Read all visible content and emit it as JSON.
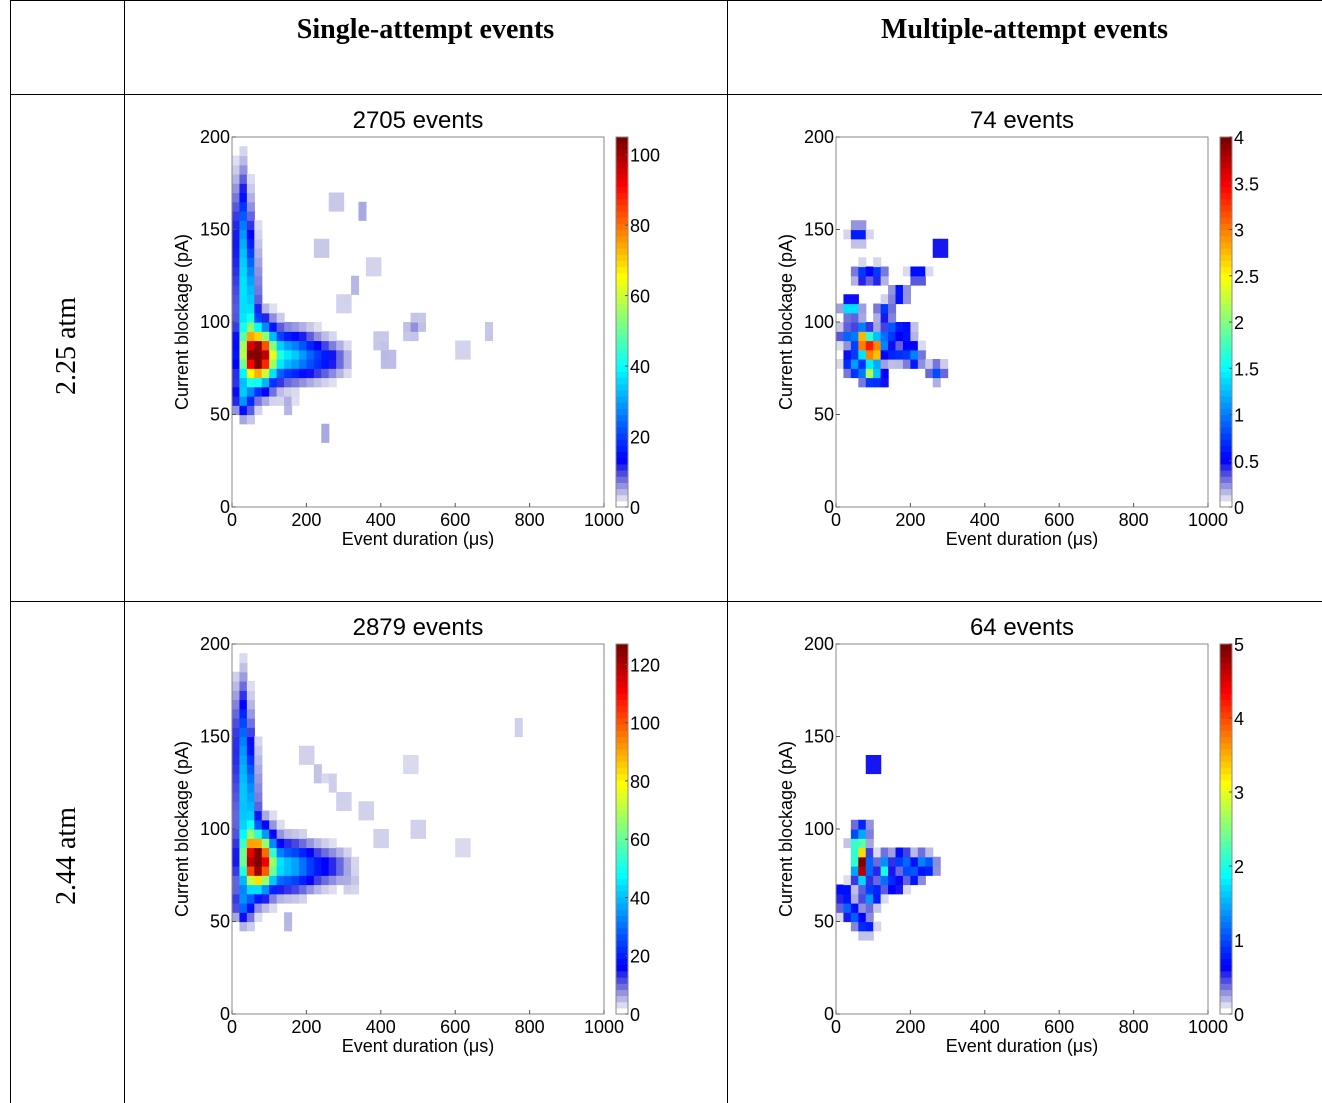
{
  "table": {
    "col_headers": [
      "Single-attempt events",
      "Multiple-attempt events"
    ],
    "row_headers": [
      "2.25 atm",
      "2.44 atm"
    ]
  },
  "chart_data": [
    {
      "type": "heatmap",
      "title": "2705 events",
      "xlabel": "Event duration (μs)",
      "ylabel": "Current blockage (pA)",
      "xlim": [
        0,
        1000
      ],
      "ylim": [
        0,
        200
      ],
      "xticks": [
        0,
        200,
        400,
        600,
        800,
        1000
      ],
      "yticks": [
        0,
        50,
        100,
        150,
        200
      ],
      "colorbar": {
        "min": 0,
        "max": 105,
        "ticks": [
          0,
          20,
          40,
          60,
          80,
          100
        ]
      },
      "colormap": "jet-white",
      "hotspots": [
        {
          "x": 70,
          "y": 82,
          "value": 105,
          "sx": 28,
          "sy": 10
        },
        {
          "x": 40,
          "y": 110,
          "value": 40,
          "sx": 16,
          "sy": 25
        },
        {
          "x": 25,
          "y": 150,
          "value": 20,
          "sx": 12,
          "sy": 20
        },
        {
          "x": 150,
          "y": 82,
          "value": 35,
          "sx": 50,
          "sy": 8
        },
        {
          "x": 250,
          "y": 80,
          "value": 12,
          "sx": 40,
          "sy": 6
        },
        {
          "x": 30,
          "y": 60,
          "value": 25,
          "sx": 15,
          "sy": 6
        }
      ],
      "scatter": [
        {
          "x": 280,
          "y": 165,
          "value": 5
        },
        {
          "x": 350,
          "y": 160,
          "value": 6
        },
        {
          "x": 380,
          "y": 130,
          "value": 4
        },
        {
          "x": 330,
          "y": 120,
          "value": 5
        },
        {
          "x": 400,
          "y": 90,
          "value": 5
        },
        {
          "x": 420,
          "y": 80,
          "value": 6
        },
        {
          "x": 480,
          "y": 95,
          "value": 5
        },
        {
          "x": 500,
          "y": 100,
          "value": 5
        },
        {
          "x": 620,
          "y": 85,
          "value": 4
        },
        {
          "x": 690,
          "y": 95,
          "value": 4
        },
        {
          "x": 250,
          "y": 40,
          "value": 6
        },
        {
          "x": 150,
          "y": 55,
          "value": 5
        },
        {
          "x": 240,
          "y": 140,
          "value": 5
        },
        {
          "x": 300,
          "y": 110,
          "value": 4
        }
      ]
    },
    {
      "type": "heatmap",
      "title": "74 events",
      "xlabel": "Event duration (μs)",
      "ylabel": "Current blockage (pA)",
      "xlim": [
        0,
        1000
      ],
      "ylim": [
        0,
        200
      ],
      "xticks": [
        0,
        200,
        400,
        600,
        800,
        1000
      ],
      "yticks": [
        0,
        50,
        100,
        150,
        200
      ],
      "colorbar": {
        "min": 0,
        "max": 4,
        "ticks": [
          0,
          0.5,
          1,
          1.5,
          2,
          2.5,
          3,
          3.5,
          4
        ]
      },
      "colormap": "jet-white",
      "hotspots": [
        {
          "x": 100,
          "y": 85,
          "value": 4,
          "sx": 14,
          "sy": 5
        },
        {
          "x": 70,
          "y": 90,
          "value": 3,
          "sx": 12,
          "sy": 5
        }
      ],
      "scatter": [
        {
          "x": 60,
          "y": 148,
          "value": 0.8
        },
        {
          "x": 280,
          "y": 140,
          "value": 0.8
        },
        {
          "x": 70,
          "y": 126,
          "value": 0.8
        },
        {
          "x": 110,
          "y": 126,
          "value": 0.8
        },
        {
          "x": 220,
          "y": 126,
          "value": 0.8
        },
        {
          "x": 170,
          "y": 115,
          "value": 0.8
        },
        {
          "x": 40,
          "y": 108,
          "value": 1.8
        },
        {
          "x": 130,
          "y": 106,
          "value": 0.8
        },
        {
          "x": 30,
          "y": 93,
          "value": 0.9
        },
        {
          "x": 150,
          "y": 96,
          "value": 0.9
        },
        {
          "x": 185,
          "y": 95,
          "value": 0.8
        },
        {
          "x": 200,
          "y": 85,
          "value": 0.8
        },
        {
          "x": 210,
          "y": 80,
          "value": 0.8
        },
        {
          "x": 40,
          "y": 80,
          "value": 0.8
        },
        {
          "x": 50,
          "y": 75,
          "value": 0.9
        },
        {
          "x": 120,
          "y": 70,
          "value": 0.8
        },
        {
          "x": 270,
          "y": 73,
          "value": 0.8
        },
        {
          "x": 90,
          "y": 72,
          "value": 2.0
        },
        {
          "x": 130,
          "y": 90,
          "value": 0.9
        },
        {
          "x": 160,
          "y": 83,
          "value": 0.8
        }
      ]
    },
    {
      "type": "heatmap",
      "title": "2879 events",
      "xlabel": "Event duration (μs)",
      "ylabel": "Current blockage (pA)",
      "xlim": [
        0,
        1000
      ],
      "ylim": [
        0,
        200
      ],
      "xticks": [
        0,
        200,
        400,
        600,
        800,
        1000
      ],
      "yticks": [
        0,
        50,
        100,
        150,
        200
      ],
      "colorbar": {
        "min": 0,
        "max": 127,
        "ticks": [
          0,
          20,
          40,
          60,
          80,
          100,
          120
        ]
      },
      "colormap": "jet-white",
      "hotspots": [
        {
          "x": 70,
          "y": 83,
          "value": 127,
          "sx": 26,
          "sy": 10
        },
        {
          "x": 40,
          "y": 110,
          "value": 45,
          "sx": 16,
          "sy": 25
        },
        {
          "x": 25,
          "y": 150,
          "value": 22,
          "sx": 12,
          "sy": 20
        },
        {
          "x": 150,
          "y": 80,
          "value": 40,
          "sx": 50,
          "sy": 8
        },
        {
          "x": 260,
          "y": 80,
          "value": 12,
          "sx": 40,
          "sy": 6
        },
        {
          "x": 30,
          "y": 60,
          "value": 25,
          "sx": 15,
          "sy": 6
        }
      ],
      "scatter": [
        {
          "x": 230,
          "y": 130,
          "value": 5
        },
        {
          "x": 270,
          "y": 125,
          "value": 4
        },
        {
          "x": 300,
          "y": 115,
          "value": 5
        },
        {
          "x": 360,
          "y": 110,
          "value": 5
        },
        {
          "x": 480,
          "y": 135,
          "value": 4
        },
        {
          "x": 500,
          "y": 100,
          "value": 5
        },
        {
          "x": 400,
          "y": 95,
          "value": 5
        },
        {
          "x": 620,
          "y": 90,
          "value": 4
        },
        {
          "x": 770,
          "y": 155,
          "value": 4
        },
        {
          "x": 200,
          "y": 140,
          "value": 5
        },
        {
          "x": 150,
          "y": 50,
          "value": 6
        },
        {
          "x": 320,
          "y": 70,
          "value": 4
        }
      ]
    },
    {
      "type": "heatmap",
      "title": "64 events",
      "xlabel": "Event duration (μs)",
      "ylabel": "Current blockage (pA)",
      "xlim": [
        0,
        1000
      ],
      "ylim": [
        0,
        200
      ],
      "xticks": [
        0,
        200,
        400,
        600,
        800,
        1000
      ],
      "yticks": [
        0,
        50,
        100,
        150,
        200
      ],
      "colorbar": {
        "min": 0,
        "max": 5,
        "ticks": [
          0,
          1,
          2,
          3,
          4,
          5
        ]
      },
      "colormap": "jet-white",
      "hotspots": [
        {
          "x": 70,
          "y": 80,
          "value": 5,
          "sx": 12,
          "sy": 5
        },
        {
          "x": 60,
          "y": 88,
          "value": 2.5,
          "sx": 10,
          "sy": 6
        },
        {
          "x": 130,
          "y": 78,
          "value": 2,
          "sx": 12,
          "sy": 5
        }
      ],
      "scatter": [
        {
          "x": 100,
          "y": 135,
          "value": 1
        },
        {
          "x": 70,
          "y": 100,
          "value": 1
        },
        {
          "x": 60,
          "y": 93,
          "value": 1.2
        },
        {
          "x": 175,
          "y": 85,
          "value": 1
        },
        {
          "x": 190,
          "y": 80,
          "value": 1
        },
        {
          "x": 230,
          "y": 83,
          "value": 1
        },
        {
          "x": 250,
          "y": 80,
          "value": 1
        },
        {
          "x": 210,
          "y": 75,
          "value": 1
        },
        {
          "x": 160,
          "y": 70,
          "value": 1
        },
        {
          "x": 20,
          "y": 66,
          "value": 1
        },
        {
          "x": 90,
          "y": 62,
          "value": 1
        },
        {
          "x": 30,
          "y": 58,
          "value": 1
        },
        {
          "x": 50,
          "y": 53,
          "value": 1
        },
        {
          "x": 80,
          "y": 48,
          "value": 1
        },
        {
          "x": 100,
          "y": 66,
          "value": 1
        }
      ]
    }
  ]
}
